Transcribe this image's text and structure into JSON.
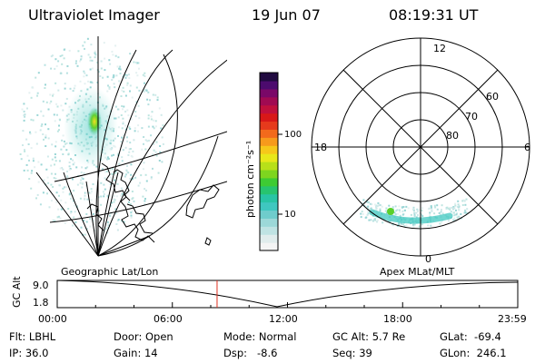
{
  "header": {
    "instrument": "Ultraviolet Imager",
    "date": "19 Jun 07",
    "time": "08:19:31 UT"
  },
  "colorbar": {
    "unit_label": "photon cm⁻²s⁻¹",
    "ticks": [
      {
        "label": "100",
        "value": 100
      },
      {
        "label": "10",
        "value": 10
      }
    ],
    "colors": [
      "#f4f4f4",
      "#e0ecec",
      "#bfe3e3",
      "#9cd8d8",
      "#6fcccc",
      "#3fc7c0",
      "#28c4a5",
      "#27c46f",
      "#3ecb33",
      "#7ed51f",
      "#b8e019",
      "#e8e81a",
      "#f6c81a",
      "#f79a1c",
      "#f26a1c",
      "#e63a1c",
      "#d81818",
      "#c0103c",
      "#a00a52",
      "#7a0868",
      "#4c0b6e",
      "#200a40"
    ]
  },
  "polar_plot": {
    "mlt_labels": {
      "top": "12",
      "left": "18",
      "right": "6",
      "bottom": "0"
    },
    "lat_labels": [
      "60",
      "70",
      "80"
    ]
  },
  "geographic_map": {
    "label": "Geographic Lat/Lon"
  },
  "altitude_plot": {
    "left_label": "Geographic Lat/Lon",
    "right_label": "Apex  MLat/MLT",
    "y_axis_label": "GC Alt",
    "y_ticks": [
      "9.0",
      "1.8"
    ],
    "x_ticks": [
      "00:00",
      "06:00",
      "12:00",
      "18:00",
      "23:59"
    ],
    "current_time_marker_hours": 8.33,
    "marker_color": "#e03020"
  },
  "info_panel": {
    "filter": "Flt: LBHL",
    "ip": "IP: 36.0",
    "door": "Door: Open",
    "gain": "Gain: 14",
    "mode": "Mode: Normal",
    "dsp": "Dsp:   -8.6",
    "gc_alt": "GC Alt: 5.7 Re",
    "seq": "Seq: 39",
    "glat": "GLat:  -69.4",
    "glon": "GLon:  246.1"
  }
}
